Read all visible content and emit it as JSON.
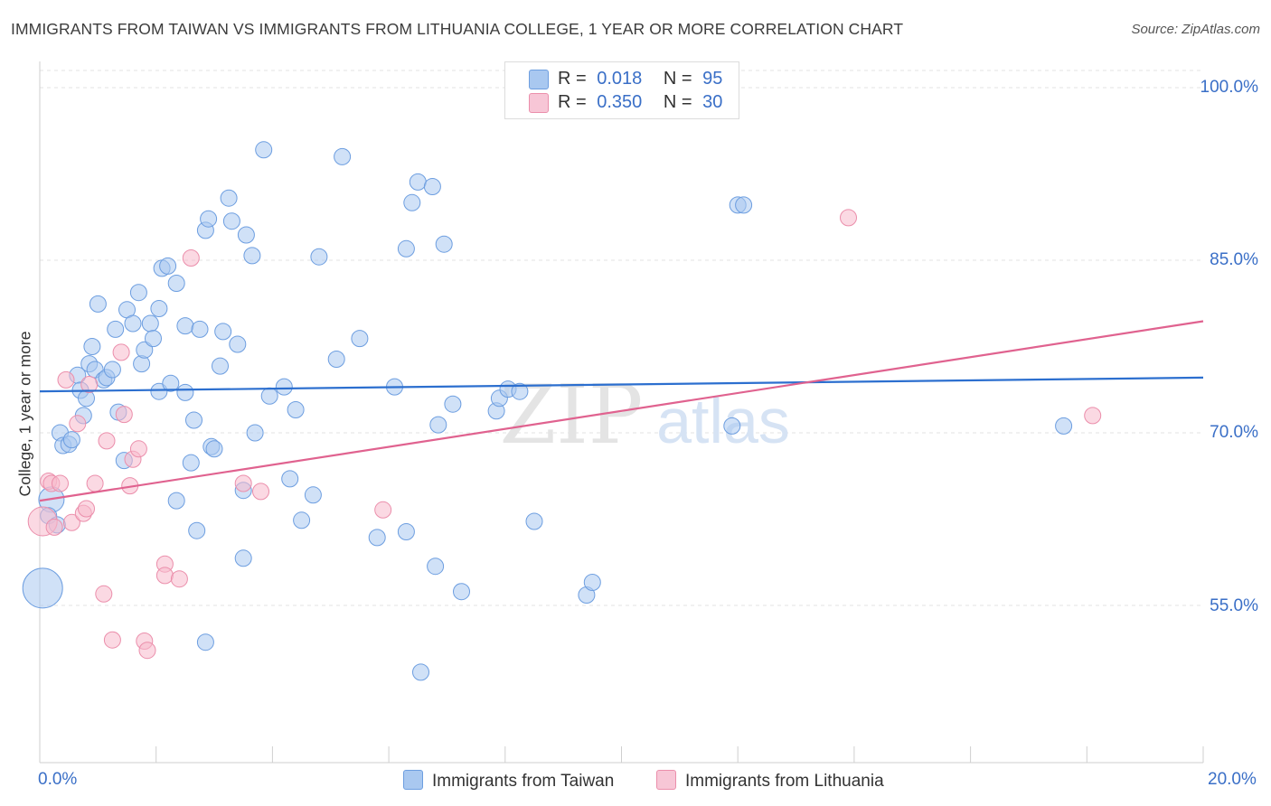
{
  "chart_data": {
    "type": "scatter",
    "title": "IMMIGRANTS FROM TAIWAN VS IMMIGRANTS FROM LITHUANIA COLLEGE, 1 YEAR OR MORE CORRELATION CHART",
    "source": "Source: ZipAtlas.com",
    "xlabel": "",
    "ylabel": "College, 1 year or more",
    "xlim": [
      0,
      20
    ],
    "ylim": [
      40,
      100
    ],
    "x_tick_labels": [
      "0.0%",
      "20.0%"
    ],
    "y_ticks": [
      {
        "value": 100,
        "label": "100.0%"
      },
      {
        "value": 85,
        "label": "85.0%"
      },
      {
        "value": 70,
        "label": "70.0%"
      },
      {
        "value": 55,
        "label": "55.0%"
      }
    ],
    "watermark": "ZIPatlas",
    "grid": true,
    "series": [
      {
        "name": "Immigrants from Taiwan",
        "color": "#a9c8f0",
        "stroke": "#6d9ee0",
        "line_color": "#2c6fcf",
        "R": "0.018",
        "N": "95",
        "trend": [
          [
            0,
            73.6
          ],
          [
            20,
            74.8
          ]
        ],
        "points": [
          [
            0.05,
            56.5,
            22
          ],
          [
            0.2,
            64.2,
            14
          ],
          [
            0.15,
            62.8,
            9
          ],
          [
            0.3,
            62,
            9
          ],
          [
            0.35,
            70,
            9
          ],
          [
            0.4,
            68.9,
            9
          ],
          [
            0.5,
            69,
            9
          ],
          [
            0.55,
            69.4,
            9
          ],
          [
            0.65,
            75,
            9
          ],
          [
            0.7,
            73.7,
            9
          ],
          [
            0.75,
            71.5,
            9
          ],
          [
            0.8,
            73,
            9
          ],
          [
            0.85,
            76,
            9
          ],
          [
            0.9,
            77.5,
            9
          ],
          [
            0.95,
            75.5,
            9
          ],
          [
            1.0,
            81.2,
            9
          ],
          [
            1.1,
            74.6,
            9
          ],
          [
            1.15,
            74.8,
            9
          ],
          [
            1.25,
            75.5,
            9
          ],
          [
            1.3,
            79,
            9
          ],
          [
            1.35,
            71.8,
            9
          ],
          [
            1.45,
            67.6,
            9
          ],
          [
            1.5,
            80.7,
            9
          ],
          [
            1.6,
            79.5,
            9
          ],
          [
            1.7,
            82.2,
            9
          ],
          [
            1.75,
            76,
            9
          ],
          [
            1.8,
            77.2,
            9
          ],
          [
            1.9,
            79.5,
            9
          ],
          [
            1.95,
            78.2,
            9
          ],
          [
            2.05,
            73.6,
            9
          ],
          [
            2.05,
            80.8,
            9
          ],
          [
            2.1,
            84.3,
            9
          ],
          [
            2.2,
            84.5,
            9
          ],
          [
            2.25,
            74.3,
            9
          ],
          [
            2.35,
            64.1,
            9
          ],
          [
            2.35,
            83,
            9
          ],
          [
            2.5,
            73.5,
            9
          ],
          [
            2.5,
            79.3,
            9
          ],
          [
            2.6,
            67.4,
            9
          ],
          [
            2.65,
            71.1,
            9
          ],
          [
            2.7,
            61.5,
            9
          ],
          [
            2.75,
            79,
            9
          ],
          [
            2.85,
            87.6,
            9
          ],
          [
            2.85,
            51.8,
            9
          ],
          [
            2.9,
            88.6,
            9
          ],
          [
            2.95,
            68.8,
            9
          ],
          [
            3.0,
            68.6,
            9
          ],
          [
            3.1,
            75.8,
            9
          ],
          [
            3.15,
            78.8,
            9
          ],
          [
            3.25,
            90.4,
            9
          ],
          [
            3.3,
            88.4,
            9
          ],
          [
            3.4,
            77.7,
            9
          ],
          [
            3.5,
            59.1,
            9
          ],
          [
            3.5,
            65,
            9
          ],
          [
            3.55,
            87.2,
            9
          ],
          [
            3.65,
            85.4,
            9
          ],
          [
            3.7,
            70,
            9
          ],
          [
            3.85,
            94.6,
            9
          ],
          [
            3.95,
            73.2,
            9
          ],
          [
            4.2,
            74,
            9
          ],
          [
            4.3,
            66,
            9
          ],
          [
            4.4,
            72,
            9
          ],
          [
            4.5,
            62.4,
            9
          ],
          [
            4.7,
            64.6,
            9
          ],
          [
            4.8,
            85.3,
            9
          ],
          [
            5.1,
            76.4,
            9
          ],
          [
            5.2,
            94,
            9
          ],
          [
            5.5,
            78.2,
            9
          ],
          [
            5.8,
            60.9,
            9
          ],
          [
            6.1,
            74,
            9
          ],
          [
            6.3,
            86,
            9
          ],
          [
            6.3,
            61.4,
            9
          ],
          [
            6.4,
            90,
            9
          ],
          [
            6.5,
            91.8,
            9
          ],
          [
            6.55,
            49.2,
            9
          ],
          [
            6.75,
            91.4,
            9
          ],
          [
            6.8,
            58.4,
            9
          ],
          [
            6.85,
            70.7,
            9
          ],
          [
            6.95,
            86.4,
            9
          ],
          [
            7.1,
            72.5,
            9
          ],
          [
            7.25,
            56.2,
            9
          ],
          [
            7.85,
            71.9,
            9
          ],
          [
            7.9,
            73,
            9
          ],
          [
            8.05,
            73.8,
            9
          ],
          [
            8.25,
            73.6,
            9
          ],
          [
            8.5,
            62.3,
            9
          ],
          [
            9.4,
            55.9,
            9
          ],
          [
            9.5,
            57,
            9
          ],
          [
            11.9,
            70.6,
            9
          ],
          [
            12.0,
            89.8,
            9
          ],
          [
            12.1,
            89.8,
            9
          ],
          [
            17.6,
            70.6,
            9
          ]
        ]
      },
      {
        "name": "Immigrants from Lithuania",
        "color": "#f7b9cc",
        "stroke": "#eb8eab",
        "line_color": "#e0628f",
        "R": "0.350",
        "N": "30",
        "trend": [
          [
            0,
            64.1
          ],
          [
            20,
            79.7
          ]
        ],
        "points": [
          [
            0.05,
            62.3,
            16
          ],
          [
            0.15,
            65.8,
            9
          ],
          [
            0.2,
            65.6,
            9
          ],
          [
            0.25,
            61.8,
            9
          ],
          [
            0.35,
            65.6,
            9
          ],
          [
            0.45,
            74.6,
            9
          ],
          [
            0.55,
            62.2,
            9
          ],
          [
            0.65,
            70.8,
            9
          ],
          [
            0.75,
            63,
            9
          ],
          [
            0.8,
            63.4,
            9
          ],
          [
            0.85,
            74.2,
            9
          ],
          [
            0.95,
            65.6,
            9
          ],
          [
            1.1,
            56,
            9
          ],
          [
            1.15,
            69.3,
            9
          ],
          [
            1.25,
            52,
            9
          ],
          [
            1.4,
            77,
            9
          ],
          [
            1.45,
            71.6,
            9
          ],
          [
            1.55,
            65.4,
            9
          ],
          [
            1.6,
            67.7,
            9
          ],
          [
            1.7,
            68.6,
            9
          ],
          [
            1.8,
            51.9,
            9
          ],
          [
            1.85,
            51.1,
            9
          ],
          [
            2.15,
            58.6,
            9
          ],
          [
            2.15,
            57.6,
            9
          ],
          [
            2.4,
            57.3,
            9
          ],
          [
            2.6,
            85.2,
            9
          ],
          [
            3.5,
            65.6,
            9
          ],
          [
            3.8,
            64.9,
            9
          ],
          [
            5.9,
            63.3,
            9
          ],
          [
            13.9,
            88.7,
            9
          ],
          [
            18.1,
            71.5,
            9
          ]
        ]
      }
    ]
  },
  "legend": {
    "r_label": "R =",
    "n_label": "N =",
    "rows": [
      {
        "r": "0.018",
        "n": "95"
      },
      {
        "r": "0.350",
        "n": "30"
      }
    ]
  },
  "bottom_legend": {
    "taiwan": "Immigrants from Taiwan",
    "lithuania": "Immigrants from Lithuania"
  }
}
